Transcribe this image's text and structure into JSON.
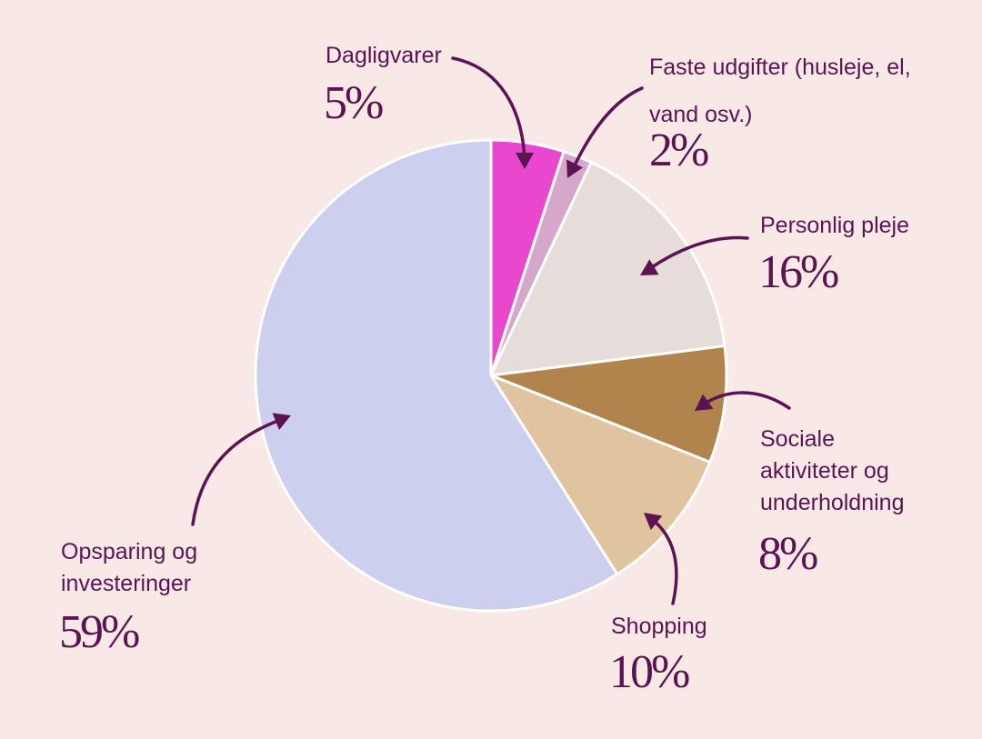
{
  "chart_data": {
    "type": "pie",
    "start_angle_deg": 0,
    "direction": "clockwise",
    "slices": [
      {
        "label": "Dagligvarer",
        "percent_label": "5%",
        "value": 5,
        "color": "#ea47cf"
      },
      {
        "label": "Faste udgifter (husleje, el,\nvand osv.)",
        "percent_label": "2%",
        "value": 2,
        "color": "#d5a7ca"
      },
      {
        "label": "Personlig pleje",
        "percent_label": "16%",
        "value": 16,
        "color": "#e6dcd9"
      },
      {
        "label": "Sociale\naktiviteter og\nunderholdning",
        "percent_label": "8%",
        "value": 8,
        "color": "#b1844d"
      },
      {
        "label": "Shopping",
        "percent_label": "10%",
        "value": 10,
        "color": "#e0c49f"
      },
      {
        "label": "Opsparing og\ninvesteringer",
        "percent_label": "59%",
        "value": 59,
        "color": "#cdcfef"
      }
    ],
    "colors": {
      "background": "#f8e9e6",
      "text": "#5c1352",
      "arrow": "#5c1352",
      "slice_border": "#ffffff"
    }
  }
}
